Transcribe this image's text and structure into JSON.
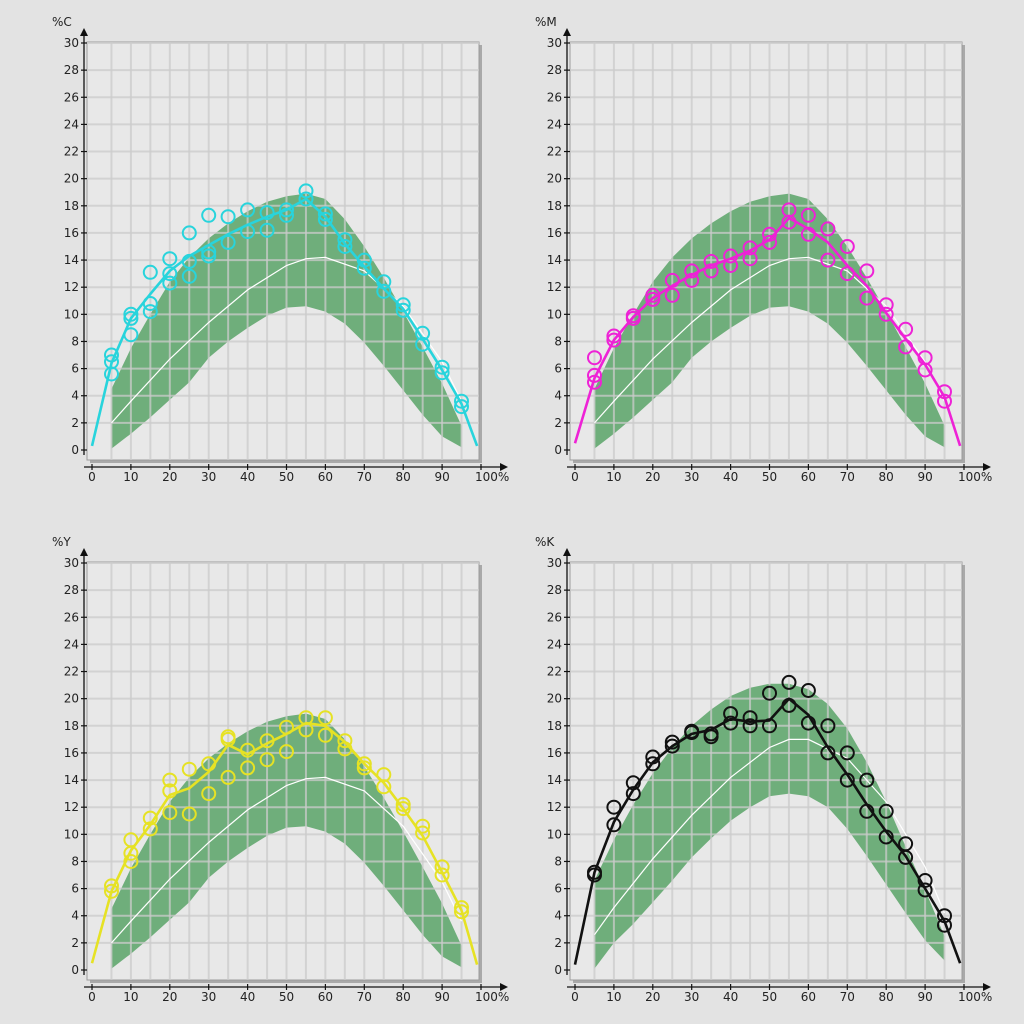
{
  "chart_data": [
    {
      "type": "line",
      "ylabel": "%C",
      "xunit": "100%",
      "xlim": [
        0,
        100
      ],
      "ylim": [
        0,
        30
      ],
      "grid": true,
      "x_ticks": [
        0,
        10,
        20,
        30,
        40,
        50,
        60,
        70,
        80,
        90
      ],
      "y_ticks": [
        0,
        2,
        4,
        6,
        8,
        10,
        12,
        14,
        16,
        18,
        20,
        22,
        24,
        26,
        28,
        30
      ],
      "colors": {
        "series": "#28d4dc",
        "band": "#6fae7b",
        "reference": "#ffffff"
      },
      "tolerance_band": {
        "x": [
          5,
          10,
          15,
          20,
          25,
          30,
          35,
          40,
          45,
          50,
          55,
          60,
          65,
          70,
          75,
          80,
          85,
          90,
          95
        ],
        "upper": [
          4.5,
          7.5,
          10.0,
          12.4,
          14.2,
          15.6,
          16.7,
          17.6,
          18.3,
          18.7,
          18.9,
          18.5,
          17.0,
          15.0,
          12.7,
          10.2,
          7.6,
          4.9,
          1.8
        ],
        "lower": [
          0.1,
          1.2,
          2.4,
          3.7,
          5.0,
          6.8,
          8.0,
          9.0,
          9.9,
          10.5,
          10.6,
          10.2,
          9.3,
          7.9,
          6.2,
          4.4,
          2.6,
          1.0,
          0.2
        ]
      },
      "reference_curve": {
        "x": [
          5,
          10,
          20,
          30,
          40,
          50,
          55,
          60,
          70,
          80,
          90,
          95
        ],
        "y": [
          2.0,
          3.6,
          6.7,
          9.4,
          11.8,
          13.6,
          14.1,
          14.2,
          13.2,
          10.6,
          6.5,
          3.6
        ]
      },
      "series_line": {
        "x": [
          0,
          5,
          10,
          15,
          20,
          25,
          30,
          35,
          40,
          45,
          50,
          55,
          60,
          65,
          70,
          75,
          80,
          85,
          90,
          95,
          99
        ],
        "y": [
          0.3,
          6.4,
          9.7,
          11.5,
          13.2,
          14.3,
          15.1,
          15.9,
          16.6,
          17.2,
          17.7,
          18.5,
          17.2,
          15.2,
          13.5,
          11.9,
          10.4,
          8.2,
          5.9,
          3.4,
          0.3
        ]
      },
      "points": {
        "x": [
          5,
          5,
          5,
          10,
          10,
          10,
          15,
          15,
          15,
          20,
          20,
          20,
          25,
          25,
          25,
          30,
          30,
          30,
          35,
          35,
          40,
          40,
          45,
          45,
          50,
          50,
          55,
          55,
          60,
          60,
          65,
          65,
          70,
          70,
          75,
          75,
          80,
          80,
          85,
          85,
          90,
          90,
          95,
          95
        ],
        "y": [
          5.6,
          6.5,
          7.0,
          8.5,
          9.7,
          10.0,
          10.2,
          10.8,
          13.1,
          12.3,
          13.0,
          14.1,
          12.8,
          13.9,
          16.0,
          14.3,
          14.6,
          17.3,
          15.3,
          17.2,
          16.1,
          17.7,
          16.2,
          17.5,
          17.3,
          17.7,
          18.5,
          19.1,
          17.0,
          17.4,
          15.0,
          15.5,
          13.4,
          14.0,
          11.7,
          12.4,
          10.3,
          10.7,
          7.8,
          8.6,
          5.7,
          6.1,
          3.2,
          3.6
        ]
      }
    },
    {
      "type": "line",
      "ylabel": "%M",
      "xunit": "100%",
      "xlim": [
        0,
        100
      ],
      "ylim": [
        0,
        30
      ],
      "grid": true,
      "x_ticks": [
        0,
        10,
        20,
        30,
        40,
        50,
        60,
        70,
        80,
        90
      ],
      "y_ticks": [
        0,
        2,
        4,
        6,
        8,
        10,
        12,
        14,
        16,
        18,
        20,
        22,
        24,
        26,
        28,
        30
      ],
      "colors": {
        "series": "#ee22d6",
        "band": "#6fae7b",
        "reference": "#ffffff"
      },
      "tolerance_band": {
        "x": [
          5,
          10,
          15,
          20,
          25,
          30,
          35,
          40,
          45,
          50,
          55,
          60,
          65,
          70,
          75,
          80,
          85,
          90,
          95
        ],
        "upper": [
          4.5,
          7.5,
          10.0,
          12.4,
          14.2,
          15.6,
          16.7,
          17.6,
          18.3,
          18.7,
          18.9,
          18.5,
          17.0,
          15.0,
          12.7,
          10.2,
          7.6,
          4.9,
          1.8
        ],
        "lower": [
          0.1,
          1.2,
          2.4,
          3.7,
          5.0,
          6.8,
          8.0,
          9.0,
          9.9,
          10.5,
          10.6,
          10.2,
          9.3,
          7.9,
          6.2,
          4.4,
          2.6,
          1.0,
          0.2
        ]
      },
      "reference_curve": {
        "x": [
          5,
          10,
          20,
          30,
          40,
          50,
          55,
          60,
          70,
          80,
          90,
          95
        ],
        "y": [
          2.0,
          3.6,
          6.7,
          9.4,
          11.8,
          13.6,
          14.1,
          14.2,
          13.2,
          10.6,
          6.5,
          3.6
        ]
      },
      "series_line": {
        "x": [
          0,
          5,
          10,
          15,
          20,
          25,
          30,
          35,
          40,
          45,
          50,
          55,
          60,
          65,
          70,
          75,
          80,
          85,
          90,
          95,
          99
        ],
        "y": [
          0.5,
          5.3,
          8.1,
          9.8,
          11.2,
          12.1,
          12.9,
          13.6,
          14.1,
          14.7,
          15.5,
          17.1,
          16.3,
          15.3,
          13.6,
          12.1,
          10.1,
          8.2,
          6.3,
          3.9,
          0.3
        ]
      },
      "points": {
        "x": [
          5,
          5,
          5,
          10,
          10,
          15,
          15,
          20,
          20,
          25,
          25,
          30,
          30,
          35,
          35,
          40,
          40,
          45,
          45,
          50,
          50,
          55,
          55,
          60,
          60,
          65,
          65,
          70,
          70,
          75,
          75,
          80,
          80,
          85,
          85,
          90,
          90,
          95,
          95
        ],
        "y": [
          5.0,
          5.5,
          6.8,
          8.1,
          8.4,
          9.7,
          9.9,
          11.1,
          11.4,
          11.4,
          12.5,
          12.5,
          13.2,
          13.2,
          13.9,
          13.6,
          14.3,
          14.1,
          14.9,
          15.3,
          15.9,
          16.8,
          17.7,
          15.9,
          17.3,
          14.0,
          16.3,
          13.0,
          15.0,
          11.2,
          13.2,
          10.0,
          10.7,
          7.6,
          8.9,
          5.9,
          6.8,
          3.6,
          4.3
        ]
      }
    },
    {
      "type": "line",
      "ylabel": "%Y",
      "xunit": "100%",
      "xlim": [
        0,
        100
      ],
      "ylim": [
        0,
        30
      ],
      "grid": true,
      "x_ticks": [
        0,
        10,
        20,
        30,
        40,
        50,
        60,
        70,
        80,
        90
      ],
      "y_ticks": [
        0,
        2,
        4,
        6,
        8,
        10,
        12,
        14,
        16,
        18,
        20,
        22,
        24,
        26,
        28,
        30
      ],
      "colors": {
        "series": "#e6e224",
        "band": "#6fae7b",
        "reference": "#ffffff"
      },
      "tolerance_band": {
        "x": [
          5,
          10,
          15,
          20,
          25,
          30,
          35,
          40,
          45,
          50,
          55,
          60,
          65,
          70,
          75,
          80,
          85,
          90,
          95
        ],
        "upper": [
          4.5,
          7.5,
          10.0,
          12.4,
          14.2,
          15.6,
          16.7,
          17.6,
          18.3,
          18.7,
          18.9,
          18.5,
          17.0,
          15.0,
          12.7,
          10.2,
          7.6,
          4.9,
          1.8
        ],
        "lower": [
          0.1,
          1.2,
          2.4,
          3.7,
          5.0,
          6.8,
          8.0,
          9.0,
          9.9,
          10.5,
          10.6,
          10.2,
          9.3,
          7.9,
          6.2,
          4.4,
          2.6,
          1.0,
          0.2
        ]
      },
      "reference_curve": {
        "x": [
          5,
          10,
          20,
          30,
          40,
          50,
          55,
          60,
          70,
          80,
          90,
          95
        ],
        "y": [
          2.0,
          3.6,
          6.7,
          9.4,
          11.8,
          13.6,
          14.1,
          14.2,
          13.2,
          10.6,
          6.5,
          3.6
        ]
      },
      "series_line": {
        "x": [
          0,
          5,
          10,
          15,
          20,
          25,
          30,
          35,
          40,
          45,
          50,
          55,
          60,
          65,
          70,
          75,
          80,
          85,
          90,
          95,
          99
        ],
        "y": [
          0.5,
          5.8,
          8.8,
          10.7,
          12.9,
          13.4,
          14.6,
          16.6,
          15.9,
          16.7,
          17.4,
          18.2,
          18.0,
          16.8,
          15.2,
          13.8,
          11.9,
          9.9,
          7.2,
          4.4,
          0.4
        ]
      },
      "points": {
        "x": [
          5,
          5,
          10,
          10,
          10,
          15,
          15,
          20,
          20,
          20,
          25,
          25,
          30,
          30,
          35,
          35,
          35,
          40,
          40,
          45,
          45,
          50,
          50,
          55,
          55,
          60,
          60,
          65,
          65,
          70,
          70,
          75,
          75,
          80,
          80,
          85,
          85,
          90,
          90,
          95,
          95
        ],
        "y": [
          5.8,
          6.2,
          8.0,
          8.6,
          9.6,
          10.4,
          11.2,
          11.6,
          13.2,
          14.0,
          11.5,
          14.8,
          13.0,
          15.2,
          14.2,
          17.0,
          17.2,
          14.9,
          16.2,
          15.5,
          16.9,
          16.1,
          17.9,
          17.7,
          18.6,
          17.3,
          18.6,
          16.3,
          16.9,
          14.9,
          15.2,
          13.5,
          14.4,
          11.9,
          12.2,
          10.1,
          10.6,
          7.0,
          7.6,
          4.3,
          4.6
        ]
      }
    },
    {
      "type": "line",
      "ylabel": "%K",
      "xunit": "100%",
      "xlim": [
        0,
        100
      ],
      "ylim": [
        0,
        30
      ],
      "grid": true,
      "x_ticks": [
        0,
        10,
        20,
        30,
        40,
        50,
        60,
        70,
        80,
        90
      ],
      "y_ticks": [
        0,
        2,
        4,
        6,
        8,
        10,
        12,
        14,
        16,
        18,
        20,
        22,
        24,
        26,
        28,
        30
      ],
      "colors": {
        "series": "#111111",
        "band": "#6fae7b",
        "reference": "#ffffff"
      },
      "tolerance_band": {
        "x": [
          5,
          10,
          15,
          20,
          25,
          30,
          35,
          40,
          45,
          50,
          55,
          60,
          65,
          70,
          75,
          80,
          85,
          90,
          95
        ],
        "upper": [
          6.6,
          9.6,
          12.2,
          14.5,
          16.4,
          18.0,
          19.2,
          20.2,
          20.8,
          21.1,
          21.1,
          20.7,
          19.6,
          17.8,
          15.3,
          12.4,
          9.1,
          5.9,
          2.5
        ],
        "lower": [
          0.1,
          2.0,
          3.4,
          5.0,
          6.6,
          8.3,
          9.7,
          11.0,
          12.0,
          12.8,
          13.0,
          12.8,
          12.0,
          10.4,
          8.4,
          6.3,
          4.2,
          2.2,
          0.7
        ]
      },
      "reference_curve": {
        "x": [
          5,
          10,
          20,
          30,
          40,
          50,
          55,
          60,
          70,
          80,
          90,
          95
        ],
        "y": [
          2.6,
          4.6,
          8.2,
          11.4,
          14.2,
          16.4,
          17.0,
          17.0,
          15.6,
          12.4,
          7.6,
          4.2
        ]
      },
      "series_line": {
        "x": [
          0,
          5,
          10,
          15,
          20,
          25,
          30,
          35,
          40,
          45,
          50,
          55,
          60,
          65,
          70,
          75,
          80,
          85,
          90,
          95,
          99
        ],
        "y": [
          0.4,
          7.2,
          10.9,
          13.3,
          15.3,
          16.5,
          17.4,
          17.7,
          18.5,
          18.3,
          18.4,
          20.0,
          18.8,
          16.4,
          14.4,
          12.2,
          10.2,
          8.4,
          6.0,
          3.6,
          0.5
        ]
      },
      "points": {
        "x": [
          5,
          5,
          10,
          10,
          15,
          15,
          20,
          20,
          25,
          25,
          30,
          30,
          35,
          35,
          40,
          40,
          45,
          45,
          50,
          50,
          55,
          55,
          60,
          60,
          65,
          65,
          70,
          70,
          75,
          75,
          80,
          80,
          85,
          85,
          90,
          90,
          95,
          95
        ],
        "y": [
          7.0,
          7.2,
          10.7,
          12.0,
          13.0,
          13.8,
          15.2,
          15.7,
          16.5,
          16.8,
          17.5,
          17.6,
          17.2,
          17.4,
          18.2,
          18.9,
          18.0,
          18.6,
          18.0,
          20.4,
          19.5,
          21.2,
          18.2,
          20.6,
          16.0,
          18.0,
          14.0,
          16.0,
          11.7,
          14.0,
          9.8,
          11.7,
          8.3,
          9.3,
          5.9,
          6.6,
          3.3,
          4.0
        ]
      }
    }
  ]
}
